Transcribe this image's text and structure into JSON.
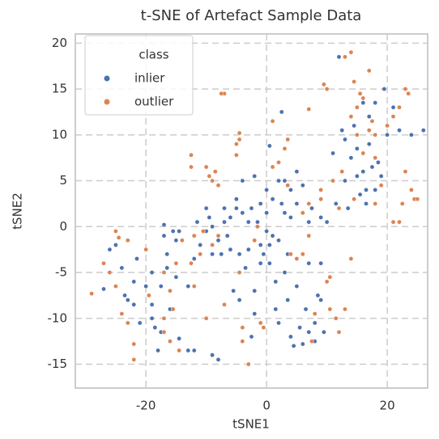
{
  "chart_data": {
    "type": "scatter",
    "title": "t-SNE of Artefact Sample Data",
    "x_label": "tSNE1",
    "y_label": "tSNE2",
    "legend_title": "class",
    "legend_position": "upper left",
    "grid": true,
    "xlim": [
      -31.7,
      26.7
    ],
    "ylim": [
      -17.6,
      21
    ],
    "xticks": [
      -20,
      0,
      20
    ],
    "yticks": [
      -15,
      -10,
      -5,
      0,
      5,
      10,
      15,
      20
    ],
    "series": [
      {
        "name": "inlier",
        "color": "#4c72b0",
        "x": [
          -27,
          -25,
          -24,
          -23,
          -23.5,
          -22,
          -22,
          -21.5,
          -21,
          -19,
          -19,
          -19,
          -18.5,
          -18,
          -17.5,
          -17.5,
          -17,
          -17,
          -16.5,
          -16.5,
          -16,
          -15.5,
          -15,
          -14.5,
          -15,
          -14.5,
          -13,
          -13,
          -12,
          -12,
          -11.5,
          -11,
          -10,
          -10,
          -9.5,
          -9,
          -9,
          -8,
          -8,
          -9,
          -7.5,
          -7,
          -7,
          -6.5,
          -6,
          -6,
          -5.5,
          -5,
          -5,
          -4.5,
          -4.5,
          -4,
          -4,
          -3.5,
          -3,
          -3,
          -2.5,
          -2.5,
          -2,
          -2,
          -2,
          -1.5,
          -1,
          -1,
          -1,
          -0.5,
          0,
          0,
          0,
          0.5,
          0.5,
          0.5,
          1,
          1,
          1.5,
          1.5,
          2,
          2,
          2,
          2.5,
          2.5,
          3,
          3,
          3,
          3.5,
          4,
          4,
          4,
          4.5,
          5,
          5,
          5,
          5.5,
          6,
          6,
          6.5,
          7,
          7,
          7,
          7.5,
          8,
          8,
          8.5,
          9,
          9,
          9.5,
          10,
          11,
          11.5,
          12,
          12.5,
          13,
          13,
          13.5,
          14,
          14.5,
          15,
          15,
          15.5,
          16,
          16,
          16.5,
          17,
          17,
          17.5,
          18,
          18,
          18.5,
          19,
          19.5,
          20,
          21,
          22,
          24,
          26,
          16.5,
          9,
          3.5,
          -26,
          -20
        ],
        "y": [
          -6.8,
          -2,
          -4.5,
          -8,
          -7.5,
          -6,
          -8.5,
          -3.5,
          -10.5,
          -8.5,
          -5,
          -10,
          -11,
          -13.5,
          -11.5,
          -6.5,
          -1,
          0.2,
          -3,
          -4.5,
          -9,
          -0.5,
          -1.5,
          -0.5,
          -5.5,
          -12.2,
          -6.5,
          -13.5,
          -13.5,
          -3.5,
          0.5,
          -2,
          -0.5,
          2,
          1,
          0,
          -3,
          -1.5,
          -14.5,
          -14,
          -3,
          0.5,
          2,
          -1,
          -2.5,
          1,
          -7,
          2,
          3,
          -3,
          -8,
          5,
          1.5,
          -4.5,
          -2.5,
          0.5,
          2,
          -12,
          -7,
          -9.5,
          5.5,
          0.5,
          -2,
          -4,
          2.5,
          -3,
          1.5,
          4,
          -0.5,
          -4,
          -2,
          8.8,
          -1,
          3,
          -6,
          -9,
          -10.5,
          5,
          -1.5,
          12.5,
          2.5,
          5,
          -5,
          1.5,
          -8,
          4,
          1,
          -12,
          -13,
          2.5,
          6,
          -6.5,
          -11,
          4.5,
          -12.8,
          -9,
          -11.5,
          -4,
          0.5,
          2,
          -10.5,
          -12.5,
          -7.5,
          -8,
          1,
          -11.5,
          0.5,
          8,
          2.5,
          18.5,
          10.5,
          9.5,
          5,
          2,
          7.5,
          11,
          5.5,
          8.5,
          3.5,
          13.5,
          6,
          4,
          12,
          9,
          6.5,
          13.5,
          4,
          7,
          5.5,
          15,
          10,
          13,
          10.5,
          10,
          10.5,
          2.5,
          -4,
          -3,
          -2.5,
          -6.5
        ]
      },
      {
        "name": "outlier",
        "color": "#dd8452",
        "x": [
          -29,
          -27,
          -26,
          -25,
          -24.5,
          -23,
          -25,
          -24,
          -23,
          -22,
          -22,
          -20,
          -19.5,
          -17,
          -15.5,
          -17,
          -16,
          -15,
          -14.5,
          -12,
          -12.5,
          -12,
          -12.5,
          -11,
          -10,
          -12.5,
          -10,
          -9.5,
          -8,
          -9,
          -8.5,
          -9,
          -8,
          -7,
          -10.5,
          -7,
          -7.5,
          -5,
          -4.5,
          -4.5,
          -5,
          -4,
          -4,
          -4.5,
          -3,
          -1.5,
          -1,
          -0.5,
          1,
          1,
          2,
          3,
          3.5,
          3.5,
          4,
          5,
          6,
          6,
          7,
          7,
          7.5,
          8,
          9,
          9,
          9.5,
          10,
          10,
          10.5,
          10.5,
          11,
          12,
          11.5,
          12,
          13,
          12.5,
          13,
          14,
          14.5,
          14,
          14.5,
          15,
          14,
          15,
          15.5,
          16,
          17,
          18,
          17.5,
          18,
          19,
          20,
          21,
          21,
          22,
          22,
          22.5,
          23,
          23.5,
          24,
          24.5,
          25,
          23,
          17,
          16,
          18,
          7,
          -2,
          -14,
          -16,
          -17
        ],
        "y": [
          -7.3,
          -4,
          -5,
          -0.5,
          -1.2,
          -1.5,
          -6.5,
          -9.5,
          -10.5,
          -12.8,
          -14.5,
          -2.5,
          -7.5,
          -10,
          -9,
          -11.5,
          -12.5,
          -4,
          -13.5,
          -1,
          -4,
          -6.5,
          6.5,
          -3,
          -10,
          7.8,
          6.5,
          5.5,
          4.5,
          5,
          6,
          -2,
          -1,
          -8.5,
          -0.5,
          14.5,
          14.5,
          9,
          9.5,
          10.2,
          7.8,
          -12.5,
          -11,
          -5,
          -15,
          0,
          -10.5,
          -11,
          6.5,
          11.5,
          7,
          8.5,
          9.5,
          4.5,
          -3,
          -3.5,
          -3,
          1.5,
          12.8,
          -1,
          -12.5,
          -9.5,
          3,
          4,
          15.5,
          15,
          -6,
          -5.5,
          -9,
          5,
          2,
          -10,
          -11.5,
          -9,
          6,
          18.5,
          19,
          15.8,
          -3.5,
          3,
          10,
          12,
          13,
          14.5,
          8,
          10.5,
          7.5,
          11.5,
          2.5,
          4.5,
          11,
          12,
          0.5,
          0.5,
          13,
          2.5,
          15,
          14.5,
          4,
          3,
          3,
          6,
          17,
          14,
          10,
          2.5,
          -1.5,
          -1.5,
          -7,
          -5
        ]
      }
    ]
  }
}
